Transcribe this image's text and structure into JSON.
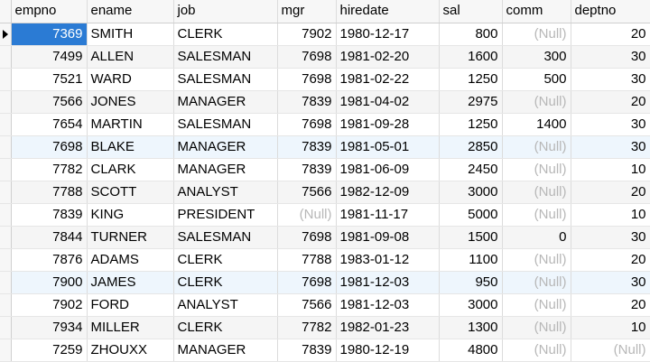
{
  "columns": [
    "empno",
    "ename",
    "job",
    "mgr",
    "hiredate",
    "sal",
    "comm",
    "deptno"
  ],
  "null_text": "(Null)",
  "rows": [
    {
      "empno": "7369",
      "ename": "SMITH",
      "job": "CLERK",
      "mgr": "7902",
      "hiredate": "1980-12-17",
      "sal": "800",
      "comm": "(Null)",
      "deptno": "20"
    },
    {
      "empno": "7499",
      "ename": "ALLEN",
      "job": "SALESMAN",
      "mgr": "7698",
      "hiredate": "1981-02-20",
      "sal": "1600",
      "comm": "300",
      "deptno": "30"
    },
    {
      "empno": "7521",
      "ename": "WARD",
      "job": "SALESMAN",
      "mgr": "7698",
      "hiredate": "1981-02-22",
      "sal": "1250",
      "comm": "500",
      "deptno": "30"
    },
    {
      "empno": "7566",
      "ename": "JONES",
      "job": "MANAGER",
      "mgr": "7839",
      "hiredate": "1981-04-02",
      "sal": "2975",
      "comm": "(Null)",
      "deptno": "20"
    },
    {
      "empno": "7654",
      "ename": "MARTIN",
      "job": "SALESMAN",
      "mgr": "7698",
      "hiredate": "1981-09-28",
      "sal": "1250",
      "comm": "1400",
      "deptno": "30"
    },
    {
      "empno": "7698",
      "ename": "BLAKE",
      "job": "MANAGER",
      "mgr": "7839",
      "hiredate": "1981-05-01",
      "sal": "2850",
      "comm": "(Null)",
      "deptno": "30"
    },
    {
      "empno": "7782",
      "ename": "CLARK",
      "job": "MANAGER",
      "mgr": "7839",
      "hiredate": "1981-06-09",
      "sal": "2450",
      "comm": "(Null)",
      "deptno": "10"
    },
    {
      "empno": "7788",
      "ename": "SCOTT",
      "job": "ANALYST",
      "mgr": "7566",
      "hiredate": "1982-12-09",
      "sal": "3000",
      "comm": "(Null)",
      "deptno": "20"
    },
    {
      "empno": "7839",
      "ename": "KING",
      "job": "PRESIDENT",
      "mgr": "(Null)",
      "hiredate": "1981-11-17",
      "sal": "5000",
      "comm": "(Null)",
      "deptno": "10"
    },
    {
      "empno": "7844",
      "ename": "TURNER",
      "job": "SALESMAN",
      "mgr": "7698",
      "hiredate": "1981-09-08",
      "sal": "1500",
      "comm": "0",
      "deptno": "30"
    },
    {
      "empno": "7876",
      "ename": "ADAMS",
      "job": "CLERK",
      "mgr": "7788",
      "hiredate": "1983-01-12",
      "sal": "1100",
      "comm": "(Null)",
      "deptno": "20"
    },
    {
      "empno": "7900",
      "ename": "JAMES",
      "job": "CLERK",
      "mgr": "7698",
      "hiredate": "1981-12-03",
      "sal": "950",
      "comm": "(Null)",
      "deptno": "30"
    },
    {
      "empno": "7902",
      "ename": "FORD",
      "job": "ANALYST",
      "mgr": "7566",
      "hiredate": "1981-12-03",
      "sal": "3000",
      "comm": "(Null)",
      "deptno": "20"
    },
    {
      "empno": "7934",
      "ename": "MILLER",
      "job": "CLERK",
      "mgr": "7782",
      "hiredate": "1982-01-23",
      "sal": "1300",
      "comm": "(Null)",
      "deptno": "10"
    },
    {
      "empno": "7259",
      "ename": "ZHOUXX",
      "job": "MANAGER",
      "mgr": "7839",
      "hiredate": "1980-12-19",
      "sal": "4800",
      "comm": "(Null)",
      "deptno": "(Null)"
    }
  ],
  "current_row": 0,
  "highlight_rows": [
    5,
    11
  ],
  "colors": {
    "selection": "#2b7bd4",
    "null_text": "#b7b7b7",
    "stripe": "#f5f5f5",
    "highlight": "#eef6fd"
  }
}
